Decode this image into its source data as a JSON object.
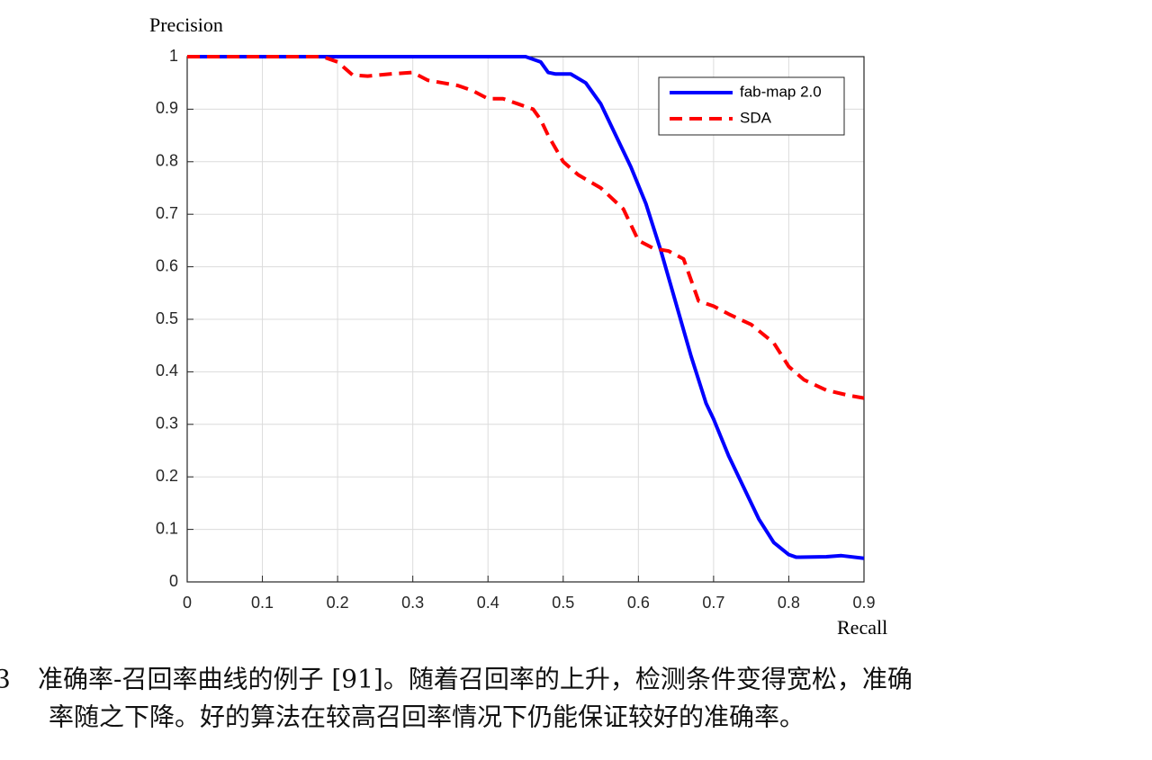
{
  "chart_data": {
    "type": "line",
    "ylabel": "Precision",
    "xlabel": "Recall",
    "xlim": [
      0,
      0.9
    ],
    "ylim": [
      0,
      1
    ],
    "xticks": [
      0,
      0.1,
      0.2,
      0.3,
      0.4,
      0.5,
      0.6,
      0.7,
      0.8,
      0.9
    ],
    "yticks": [
      0,
      0.1,
      0.2,
      0.3,
      0.4,
      0.5,
      0.6,
      0.7,
      0.8,
      0.9,
      1
    ],
    "grid": true,
    "legend": "upper right",
    "series": [
      {
        "name": "fab-map 2.0",
        "color": "#0000ff",
        "style": "solid",
        "x": [
          0,
          0.45,
          0.47,
          0.48,
          0.49,
          0.51,
          0.53,
          0.55,
          0.57,
          0.59,
          0.61,
          0.63,
          0.65,
          0.67,
          0.69,
          0.7,
          0.72,
          0.74,
          0.76,
          0.78,
          0.8,
          0.81,
          0.85,
          0.87,
          0.9
        ],
        "values": [
          1,
          1,
          0.99,
          0.97,
          0.967,
          0.967,
          0.95,
          0.91,
          0.85,
          0.79,
          0.72,
          0.63,
          0.53,
          0.43,
          0.34,
          0.31,
          0.24,
          0.18,
          0.12,
          0.075,
          0.052,
          0.047,
          0.048,
          0.05,
          0.045
        ]
      },
      {
        "name": "SDA",
        "color": "#ff0000",
        "style": "dashed",
        "x": [
          0,
          0.18,
          0.2,
          0.22,
          0.24,
          0.27,
          0.3,
          0.32,
          0.34,
          0.36,
          0.38,
          0.4,
          0.42,
          0.44,
          0.46,
          0.47,
          0.48,
          0.5,
          0.52,
          0.55,
          0.58,
          0.6,
          0.62,
          0.64,
          0.66,
          0.68,
          0.7,
          0.72,
          0.75,
          0.78,
          0.8,
          0.82,
          0.85,
          0.88,
          0.9
        ],
        "values": [
          1,
          1,
          0.99,
          0.965,
          0.963,
          0.967,
          0.97,
          0.955,
          0.95,
          0.945,
          0.935,
          0.92,
          0.92,
          0.91,
          0.9,
          0.88,
          0.85,
          0.8,
          0.775,
          0.75,
          0.71,
          0.65,
          0.635,
          0.63,
          0.615,
          0.535,
          0.525,
          0.51,
          0.49,
          0.455,
          0.41,
          0.385,
          0.365,
          0.355,
          0.35
        ]
      }
    ]
  },
  "caption": {
    "number": "3",
    "lines": [
      "准确率-召回率曲线的例子 [91]。随着召回率的上升，检测条件变得宽松，准确",
      "率随之下降。好的算法在较高召回率情况下仍能保证较好的准确率。"
    ]
  }
}
